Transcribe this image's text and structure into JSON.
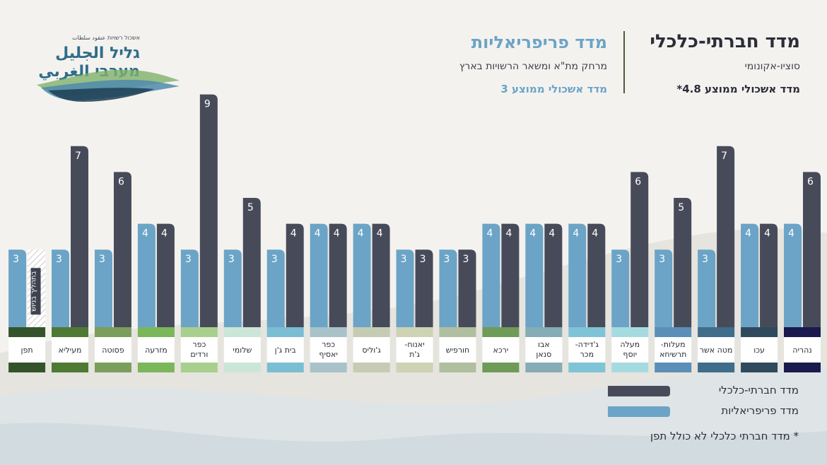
{
  "header": {
    "socio_title": "מדד חברתי-כלכלי",
    "socio_subtitle": "סוציו-אקונומי",
    "socio_avg": "מדד אשכולי ממוצע 4.8*",
    "peri_title": "מדד פריפריאליות",
    "peri_subtitle": "מרחק מת\"א ומשאר הרשויות בארץ",
    "peri_avg": "מדד אשכולי ממוצע 3"
  },
  "logo": {
    "top_line": "אשכול רשויות عنقود سلطات",
    "line1": "גליל الجليل",
    "line2": "מערבי الغربي"
  },
  "legend": {
    "socio": "מדד חברתי-כלכלי",
    "peri": "מדד פריפריאליות"
  },
  "footnote": "* מדד חברתי כלכלי לא כולל תפן",
  "colors": {
    "socio": "#474b59",
    "peri": "#6ba4c6"
  },
  "chart_data": {
    "type": "bar",
    "categories": [
      "נהריה",
      "עכו",
      "מטה אשר",
      "מעלות-תרשיחא",
      "מעלה יוסף",
      "ג'דידה-מכר",
      "אבו סנאן",
      "ירכא",
      "חורפיש",
      "יאנוח-ג'ת",
      "ג'וליס",
      "כפר יאסיף",
      "בית ג'ן",
      "שלומי",
      "כפר ורדים",
      "מזרעה",
      "פסוטה",
      "מעיליא",
      "תפן"
    ],
    "series": [
      {
        "name": "מדד חברתי-כלכלי",
        "values": [
          6,
          4,
          7,
          5,
          6,
          4,
          4,
          4,
          3,
          3,
          4,
          4,
          4,
          5,
          9,
          4,
          6,
          7,
          null
        ]
      },
      {
        "name": "מדד פריפריאליות",
        "values": [
          4,
          4,
          3,
          3,
          3,
          4,
          4,
          4,
          3,
          3,
          4,
          4,
          3,
          3,
          3,
          4,
          3,
          3,
          3
        ]
      }
    ],
    "socio_missing_label": "בתהליך בניוש",
    "category_colors": [
      "#1a1a4e",
      "#2f4a5c",
      "#3f6d8a",
      "#5b8fb8",
      "#a5dbe0",
      "#7fc3d6",
      "#86acb5",
      "#6f9b58",
      "#b0bf9f",
      "#cdd3b3",
      "#c6ccb4",
      "#a9c2ca",
      "#7bbdd2",
      "#cbe6d8",
      "#a8cf8d",
      "#7cb65b",
      "#7c9e5c",
      "#4e7a33",
      "#34532a"
    ],
    "ylim": [
      0,
      9
    ]
  }
}
